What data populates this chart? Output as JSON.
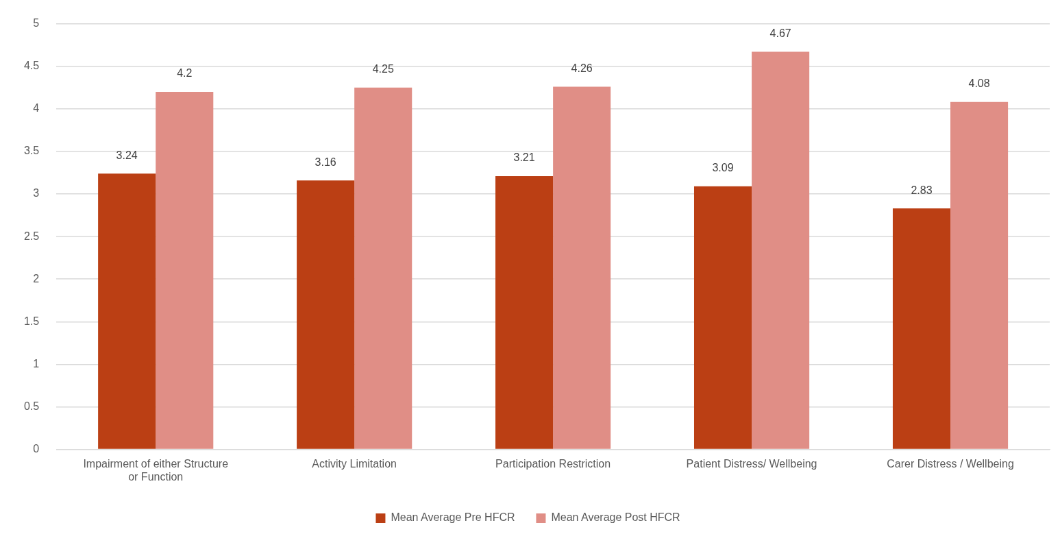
{
  "chart_data": {
    "type": "bar",
    "categories": [
      "Impairment of either Structure or Function",
      "Activity Limitation",
      "Participation Restriction",
      "Patient Distress/ Wellbeing",
      "Carer Distress / Wellbeing"
    ],
    "series": [
      {
        "name": "Mean Average Pre HFCR",
        "color": "#bb3f14",
        "values": [
          3.24,
          3.16,
          3.21,
          3.09,
          2.83
        ]
      },
      {
        "name": "Mean Average Post HFCR",
        "color": "#e08e86",
        "values": [
          4.2,
          4.25,
          4.26,
          4.67,
          4.08
        ]
      }
    ],
    "ylim": [
      0,
      5
    ],
    "yticks": [
      0,
      0.5,
      1,
      1.5,
      2,
      2.5,
      3,
      3.5,
      4,
      4.5,
      5
    ],
    "grid": "y",
    "legend": "bottom",
    "data_labels": true
  }
}
